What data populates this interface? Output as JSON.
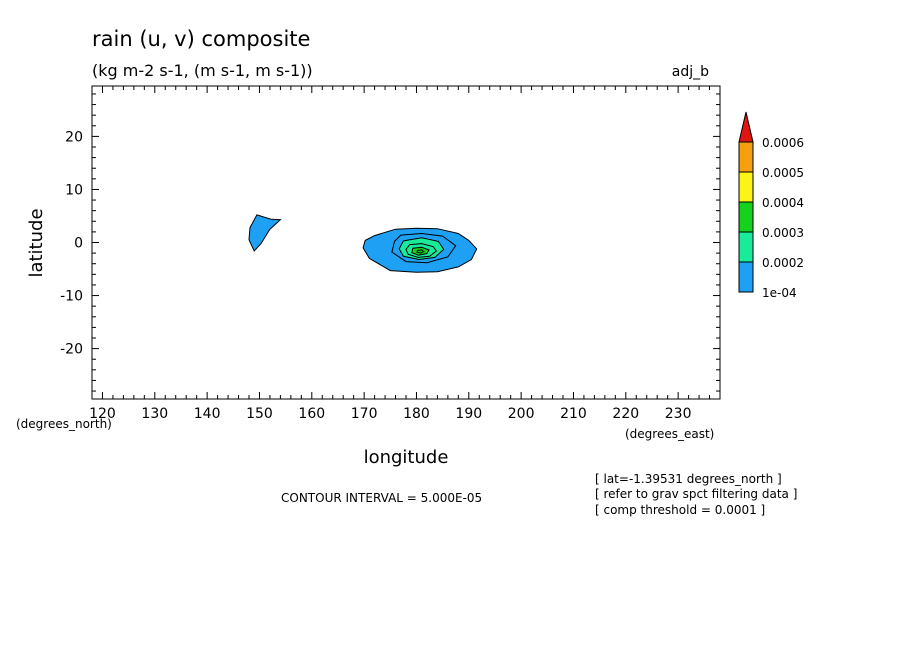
{
  "title": "rain (u, v) composite",
  "subtitle": "(kg m-2 s-1, (m s-1, m s-1))",
  "tag": "adj_b",
  "contour_interval": "CONTOUR INTERVAL = 5.000E-05",
  "notes": [
    "[ lat=-1.39531 degrees_north ]",
    "[ refer to grav spct filtering data ]",
    "[ comp threshold = 0.0001 ]"
  ],
  "colors": {
    "level1": "#1ea1f5",
    "level2": "#19eb9b",
    "level3": "#14d21e",
    "level4": "#faf514",
    "level5": "#f5a00f",
    "level6": "#e11414"
  },
  "chart_data": {
    "type": "contour",
    "xlabel": "longitude",
    "ylabel": "latitude",
    "x_unit": "(degrees_east)",
    "y_unit": "(degrees_north)",
    "xlim": [
      118,
      238
    ],
    "ylim": [
      -29.5,
      29.5
    ],
    "x_ticks": [
      120,
      130,
      140,
      150,
      160,
      170,
      180,
      190,
      200,
      210,
      220,
      230
    ],
    "y_ticks": [
      20,
      10,
      0,
      -10,
      -20
    ],
    "colorbar_labels": [
      "0.0006",
      "0.0005",
      "0.0004",
      "0.0003",
      "0.0002",
      "1e-04"
    ],
    "contour_levels": [
      0.0001,
      0.00015,
      0.0002,
      0.00025,
      0.0003,
      0.00035
    ],
    "regions": [
      {
        "level": 0.0001,
        "points": [
          [
            149.5,
            5.2
          ],
          [
            152.2,
            4.4
          ],
          [
            154,
            4.3
          ],
          [
            152,
            2.5
          ],
          [
            150.3,
            -0.2
          ],
          [
            149,
            -1.6
          ],
          [
            148,
            0.5
          ],
          [
            148.2,
            2.8
          ],
          [
            149.5,
            5.2
          ]
        ]
      },
      {
        "level": 0.0001,
        "points": [
          [
            172,
            1.3
          ],
          [
            176,
            2.5
          ],
          [
            180,
            2.7
          ],
          [
            184,
            2.6
          ],
          [
            188,
            1.7
          ],
          [
            190,
            0.4
          ],
          [
            191.5,
            -1.2
          ],
          [
            190.5,
            -3.2
          ],
          [
            188,
            -4.6
          ],
          [
            184,
            -5.5
          ],
          [
            180,
            -5.6
          ],
          [
            175,
            -5.3
          ],
          [
            171,
            -3
          ],
          [
            169.8,
            -1
          ],
          [
            170.2,
            0.4
          ],
          [
            172,
            1.3
          ]
        ]
      },
      {
        "level": 0.00015,
        "points": [
          [
            177,
            1.4
          ],
          [
            181,
            1.7
          ],
          [
            185,
            1.2
          ],
          [
            187.5,
            -0.6
          ],
          [
            186,
            -2.7
          ],
          [
            182,
            -3.8
          ],
          [
            178,
            -3.6
          ],
          [
            175.3,
            -1.8
          ],
          [
            175.8,
            0.2
          ],
          [
            177,
            1.4
          ]
        ]
      },
      {
        "level": 0.0002,
        "points": [
          [
            177.5,
            0.3
          ],
          [
            181,
            0.9
          ],
          [
            184.2,
            0.2
          ],
          [
            185.2,
            -1.3
          ],
          [
            183.5,
            -2.8
          ],
          [
            180.5,
            -3.2
          ],
          [
            177.5,
            -2.6
          ],
          [
            176.7,
            -1.2
          ],
          [
            177.5,
            0.3
          ]
        ]
      },
      {
        "level": 0.00025,
        "points": [
          [
            178.7,
            -0.4
          ],
          [
            181,
            -0.2
          ],
          [
            183.2,
            -0.8
          ],
          [
            183.8,
            -1.6
          ],
          [
            182.5,
            -2.6
          ],
          [
            180.3,
            -2.8
          ],
          [
            178.4,
            -2.2
          ],
          [
            178,
            -1.3
          ],
          [
            178.7,
            -0.4
          ]
        ]
      },
      {
        "level": 0.0003,
        "points": [
          [
            179.3,
            -1.1
          ],
          [
            181,
            -0.9
          ],
          [
            182.4,
            -1.4
          ],
          [
            182,
            -2.1
          ],
          [
            180.4,
            -2.4
          ],
          [
            179.1,
            -1.9
          ],
          [
            179.3,
            -1.1
          ]
        ]
      },
      {
        "level": 0.00035,
        "points": [
          [
            180.2,
            -1.5
          ],
          [
            181,
            -1.4
          ],
          [
            181.4,
            -1.7
          ],
          [
            180.8,
            -2
          ],
          [
            180.1,
            -1.8
          ],
          [
            180.2,
            -1.5
          ]
        ]
      }
    ]
  }
}
